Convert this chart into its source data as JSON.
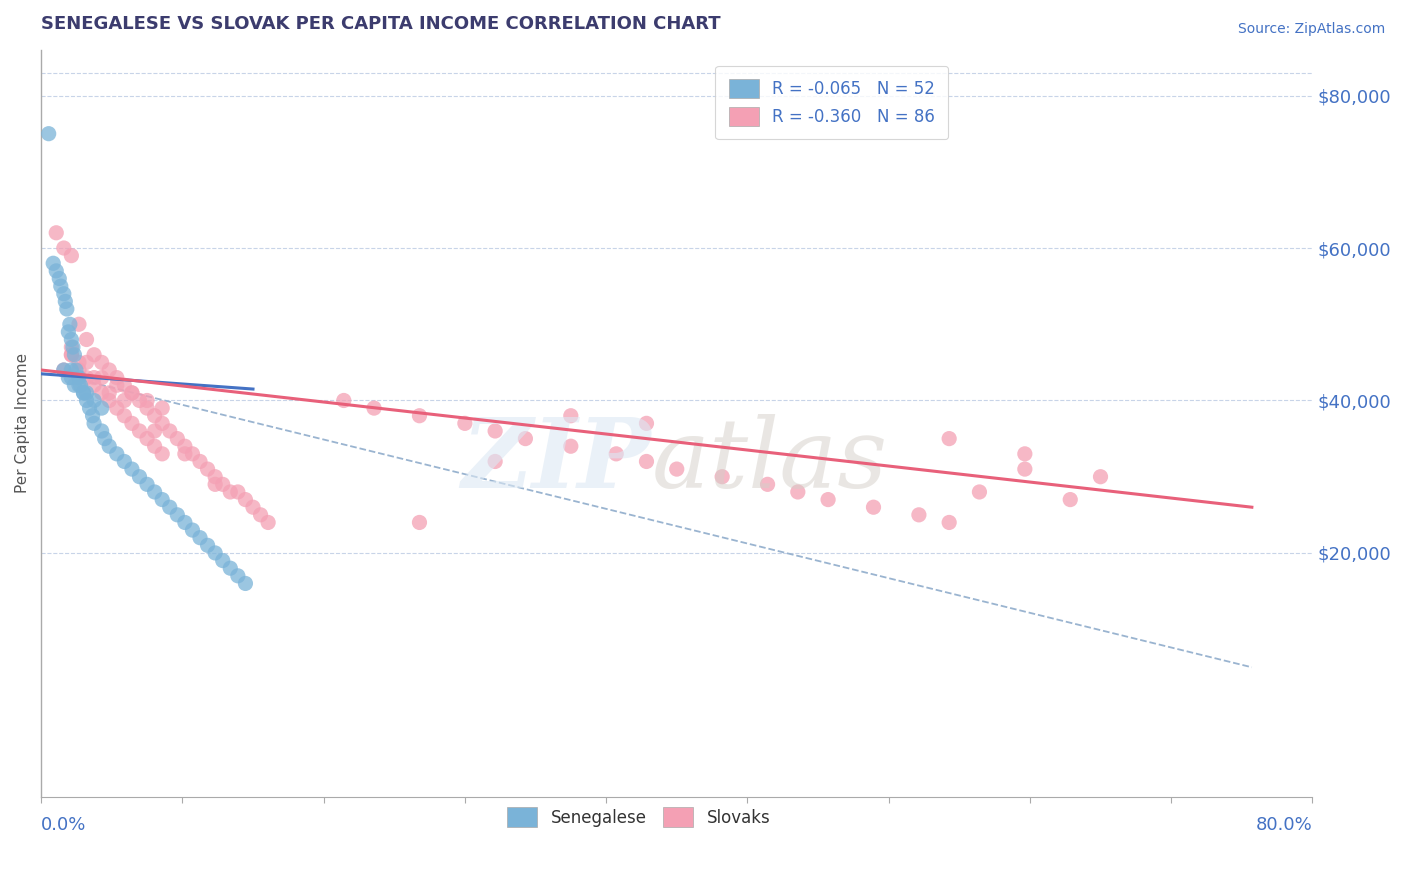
{
  "title": "SENEGALESE VS SLOVAK PER CAPITA INCOME CORRELATION CHART",
  "source": "Source: ZipAtlas.com",
  "ylabel": "Per Capita Income",
  "ytick_values": [
    20000,
    40000,
    60000,
    80000
  ],
  "senegalese_color": "#7ab3d8",
  "slovak_color": "#f4a0b4",
  "blue_line_color": "#4472c4",
  "pink_line_color": "#e8607a",
  "dashed_line_color": "#9ab4d0",
  "title_color": "#3c3c6e",
  "source_color": "#4472c4",
  "axis_color": "#4472c4",
  "grid_color": "#c8d4e8",
  "xmin": 0,
  "xmax": 84,
  "ymin": -12000,
  "ymax": 86000,
  "senegalese_x": [
    0.5,
    0.8,
    1.0,
    1.2,
    1.3,
    1.5,
    1.6,
    1.7,
    1.8,
    1.9,
    2.0,
    2.1,
    2.2,
    2.3,
    2.5,
    2.6,
    2.8,
    3.0,
    3.2,
    3.4,
    3.5,
    4.0,
    4.2,
    4.5,
    5.0,
    5.5,
    6.0,
    6.5,
    7.0,
    7.5,
    8.0,
    8.5,
    9.0,
    9.5,
    10.0,
    10.5,
    11.0,
    11.5,
    12.0,
    12.5,
    13.0,
    13.5,
    2.0,
    2.5,
    3.0,
    1.5,
    1.8,
    2.2,
    2.0,
    3.5,
    4.0,
    2.8
  ],
  "senegalese_y": [
    75000,
    58000,
    57000,
    56000,
    55000,
    54000,
    53000,
    52000,
    49000,
    50000,
    48000,
    47000,
    46000,
    44000,
    43000,
    42000,
    41000,
    40000,
    39000,
    38000,
    37000,
    36000,
    35000,
    34000,
    33000,
    32000,
    31000,
    30000,
    29000,
    28000,
    27000,
    26000,
    25000,
    24000,
    23000,
    22000,
    21000,
    20000,
    19000,
    18000,
    17000,
    16000,
    43000,
    42000,
    41000,
    44000,
    43000,
    42000,
    44000,
    40000,
    39000,
    41000
  ],
  "slovak_x": [
    1.0,
    1.5,
    2.0,
    2.5,
    3.0,
    3.5,
    4.0,
    4.5,
    5.0,
    5.5,
    6.0,
    6.5,
    7.0,
    7.5,
    8.0,
    8.5,
    9.0,
    9.5,
    10.0,
    10.5,
    11.0,
    11.5,
    12.0,
    12.5,
    13.0,
    13.5,
    14.0,
    14.5,
    15.0,
    2.0,
    2.5,
    3.0,
    3.5,
    4.0,
    4.5,
    5.0,
    5.5,
    6.0,
    6.5,
    7.0,
    7.5,
    8.0,
    2.0,
    3.0,
    4.0,
    5.0,
    6.0,
    7.0,
    8.0,
    20.0,
    22.0,
    25.0,
    28.0,
    30.0,
    32.0,
    35.0,
    38.0,
    40.0,
    42.0,
    45.0,
    48.0,
    50.0,
    52.0,
    55.0,
    58.0,
    60.0,
    62.0,
    65.0,
    68.0,
    70.0,
    35.0,
    40.0,
    30.0,
    25.0,
    60.0,
    65.0,
    2.5,
    3.5,
    1.5,
    2.0,
    4.5,
    5.5,
    7.5,
    9.5,
    11.5
  ],
  "slovak_y": [
    62000,
    60000,
    59000,
    50000,
    48000,
    46000,
    45000,
    44000,
    43000,
    42000,
    41000,
    40000,
    39000,
    38000,
    37000,
    36000,
    35000,
    34000,
    33000,
    32000,
    31000,
    30000,
    29000,
    28000,
    28000,
    27000,
    26000,
    25000,
    24000,
    46000,
    44000,
    43000,
    42000,
    41000,
    40000,
    39000,
    38000,
    37000,
    36000,
    35000,
    34000,
    33000,
    47000,
    45000,
    43000,
    42000,
    41000,
    40000,
    39000,
    40000,
    39000,
    38000,
    37000,
    36000,
    35000,
    34000,
    33000,
    32000,
    31000,
    30000,
    29000,
    28000,
    27000,
    26000,
    25000,
    24000,
    28000,
    33000,
    27000,
    30000,
    38000,
    37000,
    32000,
    24000,
    35000,
    31000,
    45000,
    43000,
    44000,
    46000,
    41000,
    40000,
    36000,
    33000,
    29000
  ],
  "blue_line_x": [
    0,
    14
  ],
  "blue_line_y": [
    43500,
    41500
  ],
  "pink_line_x": [
    0,
    80
  ],
  "pink_line_y": [
    44000,
    26000
  ],
  "dashed_line_x": [
    2,
    80
  ],
  "dashed_line_y": [
    43000,
    5000
  ]
}
